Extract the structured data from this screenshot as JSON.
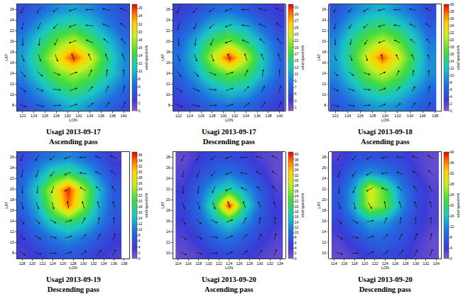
{
  "chart_data": [
    {
      "type": "heatmap",
      "title": "Usagi 2013-09-17",
      "subtitle": "Ascending pass",
      "x_label": "LON",
      "y_label": "LAT",
      "colorbar_label": "wind speed m/s",
      "grid": false,
      "x": [
        122,
        125,
        128,
        131,
        134,
        137,
        140
      ],
      "y": [
        8,
        11,
        14,
        17,
        20,
        23,
        26
      ],
      "xlim": [
        121,
        141
      ],
      "xticks": [
        122,
        124,
        126,
        128,
        130,
        132,
        134,
        136,
        138,
        140
      ],
      "ylim": [
        7,
        27
      ],
      "yticks": [
        8,
        10,
        12,
        14,
        16,
        18,
        20,
        22,
        24,
        26
      ],
      "zlim": [
        0,
        27
      ],
      "zticks": [
        0,
        2,
        4,
        6,
        8,
        10,
        12,
        14,
        16,
        18,
        20,
        22,
        24,
        26
      ],
      "values": [
        [
          4,
          6,
          8,
          10,
          8,
          6,
          4
        ],
        [
          6,
          9,
          12,
          14,
          12,
          9,
          6
        ],
        [
          8,
          12,
          16,
          18,
          16,
          12,
          8
        ],
        [
          9,
          14,
          20,
          26,
          20,
          13,
          8
        ],
        [
          8,
          12,
          16,
          19,
          15,
          11,
          7
        ],
        [
          6,
          9,
          12,
          13,
          11,
          8,
          5
        ],
        [
          4,
          6,
          8,
          9,
          8,
          6,
          4
        ]
      ],
      "wind_direction": [
        [
          -25,
          -14,
          2,
          20,
          38,
          54,
          65
        ],
        [
          -36,
          -25,
          -7,
          20,
          47,
          65,
          76
        ],
        [
          -52,
          -43,
          -25,
          20,
          65,
          83,
          92
        ],
        [
          -70,
          -70,
          -70,
          110,
          110,
          110,
          110
        ],
        [
          -88,
          -97,
          -115,
          -160,
          155,
          137,
          128
        ],
        [
          -104,
          -115,
          -133,
          -160,
          173,
          155,
          144
        ],
        [
          -115,
          -126,
          -142,
          -160,
          -178,
          166,
          155
        ]
      ]
    },
    {
      "type": "heatmap",
      "title": "Usagi 2013-09-17",
      "subtitle": "Descending pass",
      "x_label": "LON",
      "y_label": "LAT",
      "colorbar_label": "wind speed m/s",
      "grid": false,
      "x": [
        122,
        125,
        128,
        131,
        134,
        137,
        140
      ],
      "y": [
        8,
        11,
        14,
        17,
        20,
        23,
        26
      ],
      "xlim": [
        121,
        141
      ],
      "xticks": [
        122,
        124,
        126,
        128,
        130,
        132,
        134,
        136,
        138,
        140
      ],
      "ylim": [
        7,
        27
      ],
      "yticks": [
        8,
        10,
        12,
        14,
        16,
        18,
        20,
        22,
        24,
        26
      ],
      "zlim": [
        0,
        32
      ],
      "zticks": [
        1,
        3,
        5,
        7,
        9,
        11,
        13,
        15,
        17,
        19,
        21,
        23,
        25,
        27,
        29,
        31
      ],
      "values": [
        [
          3,
          5,
          7,
          8,
          7,
          5,
          3
        ],
        [
          5,
          8,
          11,
          13,
          12,
          8,
          5
        ],
        [
          7,
          11,
          16,
          19,
          17,
          12,
          7
        ],
        [
          8,
          13,
          22,
          31,
          22,
          13,
          7
        ],
        [
          7,
          12,
          17,
          20,
          16,
          11,
          6
        ],
        [
          5,
          8,
          12,
          13,
          11,
          7,
          4
        ],
        [
          3,
          5,
          7,
          8,
          6,
          4,
          3
        ]
      ],
      "wind_direction": [
        [
          -25,
          -14,
          2,
          20,
          38,
          54,
          65
        ],
        [
          -36,
          -25,
          -7,
          20,
          47,
          65,
          76
        ],
        [
          -52,
          -43,
          -25,
          20,
          65,
          83,
          92
        ],
        [
          -70,
          -70,
          -70,
          110,
          110,
          110,
          110
        ],
        [
          -88,
          -97,
          -115,
          -160,
          155,
          137,
          128
        ],
        [
          -104,
          -115,
          -133,
          -160,
          173,
          155,
          144
        ],
        [
          -115,
          -126,
          -142,
          -160,
          -178,
          166,
          155
        ]
      ]
    },
    {
      "type": "heatmap",
      "title": "Usagi 2013-09-18",
      "subtitle": "Ascending pass",
      "x_label": "LON",
      "y_label": "LAT",
      "colorbar_label": "wind speed m/s",
      "grid": false,
      "x": [
        122,
        124.5,
        127,
        129.5,
        132,
        134.5,
        137
      ],
      "y": [
        8,
        11,
        14,
        17,
        20,
        23,
        26
      ],
      "xlim": [
        121,
        139
      ],
      "xticks": [
        122,
        124,
        126,
        128,
        130,
        132,
        134,
        136,
        138
      ],
      "ylim": [
        7,
        27
      ],
      "yticks": [
        8,
        10,
        12,
        14,
        16,
        18,
        20,
        22,
        24,
        26
      ],
      "zlim": [
        0,
        30
      ],
      "zticks": [
        0,
        2,
        4,
        6,
        8,
        10,
        12,
        14,
        16,
        18,
        20,
        22,
        24,
        26,
        28,
        30
      ],
      "values": [
        [
          5,
          7,
          9,
          10,
          9,
          7,
          5
        ],
        [
          7,
          10,
          13,
          15,
          13,
          10,
          7
        ],
        [
          9,
          13,
          18,
          21,
          18,
          13,
          9
        ],
        [
          10,
          15,
          22,
          28,
          22,
          15,
          9
        ],
        [
          9,
          14,
          18,
          21,
          18,
          13,
          8
        ],
        [
          7,
          11,
          14,
          15,
          13,
          10,
          6
        ],
        [
          5,
          8,
          10,
          11,
          9,
          7,
          4
        ]
      ],
      "wind_direction": [
        [
          -20,
          -10,
          5,
          25,
          40,
          55,
          65
        ],
        [
          -32,
          -22,
          -5,
          25,
          50,
          66,
          76
        ],
        [
          -50,
          -40,
          -20,
          30,
          68,
          84,
          92
        ],
        [
          -70,
          -72,
          -75,
          100,
          112,
          112,
          110
        ],
        [
          -90,
          -100,
          -120,
          -155,
          150,
          135,
          126
        ],
        [
          -105,
          -118,
          -135,
          -160,
          170,
          152,
          142
        ],
        [
          -116,
          -128,
          -144,
          -162,
          -178,
          165,
          154
        ]
      ]
    },
    {
      "type": "heatmap",
      "title": "Usagi 2013-09-19",
      "subtitle": "Descending pass",
      "x_label": "LON",
      "y_label": "LAT",
      "colorbar_label": "wind speed m/s",
      "grid": false,
      "x": [
        118,
        121,
        124,
        127,
        130,
        133,
        136
      ],
      "y": [
        8,
        11,
        14,
        17,
        20,
        23,
        26
      ],
      "xlim": [
        117,
        139
      ],
      "xticks": [
        118,
        120,
        122,
        124,
        126,
        128,
        130,
        132,
        134,
        136,
        138
      ],
      "ylim": [
        7,
        27
      ],
      "yticks": [
        8,
        10,
        12,
        14,
        16,
        18,
        20,
        22,
        24,
        26
      ],
      "zlim": [
        0,
        37
      ],
      "zticks": [
        0,
        2,
        4,
        6,
        8,
        10,
        12,
        14,
        16,
        18,
        20,
        22,
        24,
        26,
        28,
        30,
        32,
        34,
        36
      ],
      "values": [
        [
          3,
          4,
          6,
          7,
          6,
          4,
          3
        ],
        [
          4,
          7,
          10,
          12,
          10,
          7,
          4
        ],
        [
          6,
          11,
          16,
          19,
          16,
          11,
          6
        ],
        [
          8,
          14,
          24,
          34,
          24,
          13,
          7
        ],
        [
          9,
          16,
          26,
          36,
          25,
          14,
          7
        ],
        [
          7,
          12,
          17,
          19,
          15,
          10,
          5
        ],
        [
          5,
          8,
          10,
          11,
          9,
          6,
          3
        ]
      ],
      "wind_direction": [
        [
          -28,
          -16,
          0,
          18,
          36,
          52,
          63
        ],
        [
          -38,
          -28,
          -10,
          18,
          45,
          63,
          74
        ],
        [
          -55,
          -46,
          -30,
          15,
          62,
          80,
          90
        ],
        [
          -72,
          -72,
          -75,
          100,
          108,
          108,
          106
        ],
        [
          -86,
          -95,
          -110,
          -150,
          150,
          134,
          126
        ],
        [
          -102,
          -112,
          -130,
          -158,
          172,
          154,
          142
        ],
        [
          -114,
          -124,
          -140,
          -158,
          -178,
          166,
          155
        ]
      ]
    },
    {
      "type": "heatmap",
      "title": "Usagi 2013-09-20",
      "subtitle": "Ascending pass",
      "x_label": "LON",
      "y_label": "LAT",
      "colorbar_label": "wind speed m/s",
      "grid": false,
      "x": [
        115,
        118,
        121,
        124,
        127,
        130,
        133
      ],
      "y": [
        10,
        13,
        16,
        19,
        22,
        25,
        28
      ],
      "xlim": [
        113,
        135
      ],
      "xticks": [
        114,
        116,
        118,
        120,
        122,
        124,
        126,
        128,
        130,
        132,
        134
      ],
      "ylim": [
        9,
        29
      ],
      "yticks": [
        10,
        12,
        14,
        16,
        18,
        20,
        22,
        24,
        26,
        28
      ],
      "zlim": [
        0,
        41
      ],
      "zticks": [
        0,
        2,
        4,
        6,
        8,
        10,
        12,
        14,
        16,
        18,
        20,
        22,
        24,
        26,
        28,
        30,
        32,
        34,
        36,
        38,
        40
      ],
      "values": [
        [
          2,
          3,
          5,
          6,
          5,
          3,
          2
        ],
        [
          3,
          5,
          9,
          11,
          8,
          5,
          3
        ],
        [
          4,
          8,
          14,
          18,
          13,
          7,
          4
        ],
        [
          5,
          10,
          20,
          40,
          19,
          9,
          4
        ],
        [
          4,
          9,
          15,
          19,
          14,
          8,
          3
        ],
        [
          3,
          6,
          9,
          11,
          8,
          5,
          2
        ],
        [
          2,
          4,
          6,
          6,
          5,
          3,
          2
        ]
      ],
      "wind_direction": [
        [
          -25,
          -14,
          2,
          20,
          38,
          54,
          65
        ],
        [
          -36,
          -25,
          -7,
          20,
          47,
          65,
          76
        ],
        [
          -52,
          -43,
          -25,
          20,
          65,
          83,
          92
        ],
        [
          -70,
          -70,
          -70,
          110,
          110,
          110,
          110
        ],
        [
          -88,
          -97,
          -115,
          -160,
          155,
          137,
          128
        ],
        [
          -104,
          -115,
          -133,
          -160,
          173,
          155,
          144
        ],
        [
          -115,
          -126,
          -142,
          -160,
          -178,
          166,
          155
        ]
      ]
    },
    {
      "type": "heatmap",
      "title": "Usagi 2013-09-20",
      "subtitle": "Descending pass",
      "x_label": "LON",
      "y_label": "LAT",
      "colorbar_label": "wind speed m/s",
      "grid": false,
      "x": [
        115,
        118,
        121,
        124,
        127,
        130,
        133
      ],
      "y": [
        10,
        13,
        16,
        19,
        22,
        25,
        28
      ],
      "xlim": [
        113,
        135
      ],
      "xticks": [
        114,
        116,
        118,
        120,
        122,
        124,
        126,
        128,
        130,
        132,
        134
      ],
      "ylim": [
        9,
        29
      ],
      "yticks": [
        10,
        12,
        14,
        16,
        18,
        20,
        22,
        24,
        26,
        28
      ],
      "zlim": [
        0,
        40
      ],
      "zticks": [
        0,
        4,
        8,
        12,
        16,
        20,
        24,
        28,
        32,
        36,
        40
      ],
      "values": [
        [
          2,
          3,
          5,
          6,
          5,
          3,
          2
        ],
        [
          3,
          6,
          9,
          9,
          7,
          4,
          2
        ],
        [
          5,
          10,
          14,
          13,
          9,
          5,
          3
        ],
        [
          7,
          15,
          28,
          24,
          13,
          6,
          3
        ],
        [
          7,
          14,
          30,
          22,
          12,
          6,
          3
        ],
        [
          5,
          10,
          13,
          11,
          8,
          4,
          2
        ],
        [
          3,
          6,
          7,
          6,
          5,
          3,
          2
        ]
      ],
      "wind_direction": [
        [
          -15,
          0,
          20,
          38,
          52,
          62,
          70
        ],
        [
          -25,
          -10,
          15,
          45,
          60,
          72,
          80
        ],
        [
          -45,
          -30,
          10,
          65,
          80,
          90,
          96
        ],
        [
          -70,
          -80,
          -60,
          100,
          108,
          108,
          106
        ],
        [
          -95,
          -115,
          -150,
          160,
          140,
          128,
          120
        ],
        [
          -110,
          -125,
          -150,
          -175,
          160,
          145,
          135
        ],
        [
          -120,
          -132,
          -150,
          -170,
          175,
          160,
          150
        ]
      ]
    }
  ]
}
